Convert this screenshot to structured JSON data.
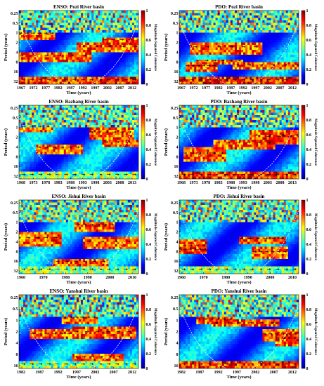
{
  "colormap": [
    "#00008f",
    "#0000ff",
    "#00ffff",
    "#ffff00",
    "#ff0000",
    "#800000"
  ],
  "chart_data": [
    {
      "type": "heatmap",
      "title": "ENSO: Pozi River basin",
      "xlabel": "Time (years)",
      "ylabel": "Period (years)",
      "xticks": [
        "1967",
        "1972",
        "1977",
        "1982",
        "1987",
        "1992",
        "1997",
        "2002",
        "2007",
        "2012"
      ],
      "yticks": [
        "0.25",
        "0.5",
        "1",
        "2",
        "4",
        "8",
        "16",
        "32"
      ],
      "colorbar": {
        "label": "Magnitude-Squared Coherence",
        "ticks": [
          "0",
          "0.2",
          "0.4",
          "0.6",
          "0.8",
          "1"
        ]
      }
    },
    {
      "type": "heatmap",
      "title": "PDO: Pozi River basin",
      "xlabel": "Time (years)",
      "ylabel": "Period (years)",
      "xticks": [
        "1967",
        "1972",
        "1977",
        "1982",
        "1987",
        "1992",
        "1997",
        "2002",
        "2007",
        "2012"
      ],
      "yticks": [
        "0.25",
        "0.5",
        "1",
        "2",
        "4",
        "8",
        "16",
        "32"
      ],
      "colorbar": {
        "label": "Magnitude-Squared Coherence",
        "ticks": [
          "0",
          "0.2",
          "0.4",
          "0.6",
          "0.8",
          "1"
        ]
      }
    },
    {
      "type": "heatmap",
      "title": "ENSO: Bazhang River basin",
      "xlabel": "Time (years)",
      "ylabel": "Period (years)",
      "xticks": [
        "1968",
        "1973",
        "1978",
        "1983",
        "1988",
        "1993",
        "1998",
        "2003",
        "2008",
        "2013"
      ],
      "yticks": [
        "0.25",
        "0.5",
        "1",
        "2",
        "4",
        "8",
        "16",
        "32"
      ],
      "colorbar": {
        "label": "Magnitude-Squared Coherence",
        "ticks": [
          "0",
          "0.2",
          "0.4",
          "0.6",
          "0.8",
          "1"
        ]
      }
    },
    {
      "type": "heatmap",
      "title": "PDO: Bazhang River basin",
      "xlabel": "Time (years)",
      "ylabel": "Period (years)",
      "xticks": [
        "1968",
        "1973",
        "1978",
        "1983",
        "1988",
        "1993",
        "1998",
        "2003",
        "2008",
        "2013"
      ],
      "yticks": [
        "0.25",
        "0.5",
        "1",
        "2",
        "4",
        "8",
        "16",
        "32"
      ],
      "colorbar": {
        "label": "Magnitude-Squared Coherence",
        "ticks": [
          "0",
          "0.2",
          "0.4",
          "0.6",
          "0.8",
          "1"
        ]
      }
    },
    {
      "type": "heatmap",
      "title": "ENSO: Jishui River basin",
      "xlabel": "Time (years)",
      "ylabel": "Period (years)",
      "xticks": [
        "1960",
        "1970",
        "1980",
        "1990",
        "2000",
        "2010"
      ],
      "yticks": [
        "0.25",
        "0.5",
        "1",
        "2",
        "4",
        "8",
        "16",
        "32"
      ],
      "colorbar": {
        "label": "Magnitude-Squared Coherence",
        "ticks": [
          "0",
          "0.2",
          "0.4",
          "0.6",
          "0.8",
          "1"
        ]
      }
    },
    {
      "type": "heatmap",
      "title": "PDO: Jishui River basin",
      "xlabel": "Time (years)",
      "ylabel": "Period (years)",
      "xticks": [
        "1960",
        "1970",
        "1980",
        "1990",
        "2000",
        "2010"
      ],
      "yticks": [
        "0.25",
        "0.5",
        "1",
        "2",
        "4",
        "8",
        "16",
        "32"
      ],
      "colorbar": {
        "label": "Magnitude-Squared Coherence",
        "ticks": [
          "0",
          "0.2",
          "0.4",
          "0.6",
          "0.8",
          "1"
        ]
      }
    },
    {
      "type": "heatmap",
      "title": "ENSO: Yanshui River basin",
      "xlabel": "Time (years)",
      "ylabel": "Period (years)",
      "xticks": [
        "1982",
        "1987",
        "1992",
        "1997",
        "2002",
        "2007",
        "2012"
      ],
      "yticks": [
        "0.25",
        "0.5",
        "1",
        "2",
        "4",
        "8",
        "16"
      ],
      "colorbar": {
        "label": "Magnitude-Squared Coherence",
        "ticks": [
          "0",
          "0.2",
          "0.4",
          "0.6",
          "0.8",
          "1"
        ]
      }
    },
    {
      "type": "heatmap",
      "title": "PDO: Yanshui River basin",
      "xlabel": "Time (years)",
      "ylabel": "Period (years)",
      "xticks": [
        "1982",
        "1987",
        "1992",
        "1997",
        "2002",
        "2007",
        "2012"
      ],
      "yticks": [
        "0.25",
        "0.5",
        "1",
        "2",
        "4",
        "8",
        "16"
      ],
      "colorbar": {
        "label": "Magnitude-Squared Coherence",
        "ticks": [
          "0",
          "0.2",
          "0.4",
          "0.6",
          "0.8",
          "1"
        ]
      }
    }
  ]
}
